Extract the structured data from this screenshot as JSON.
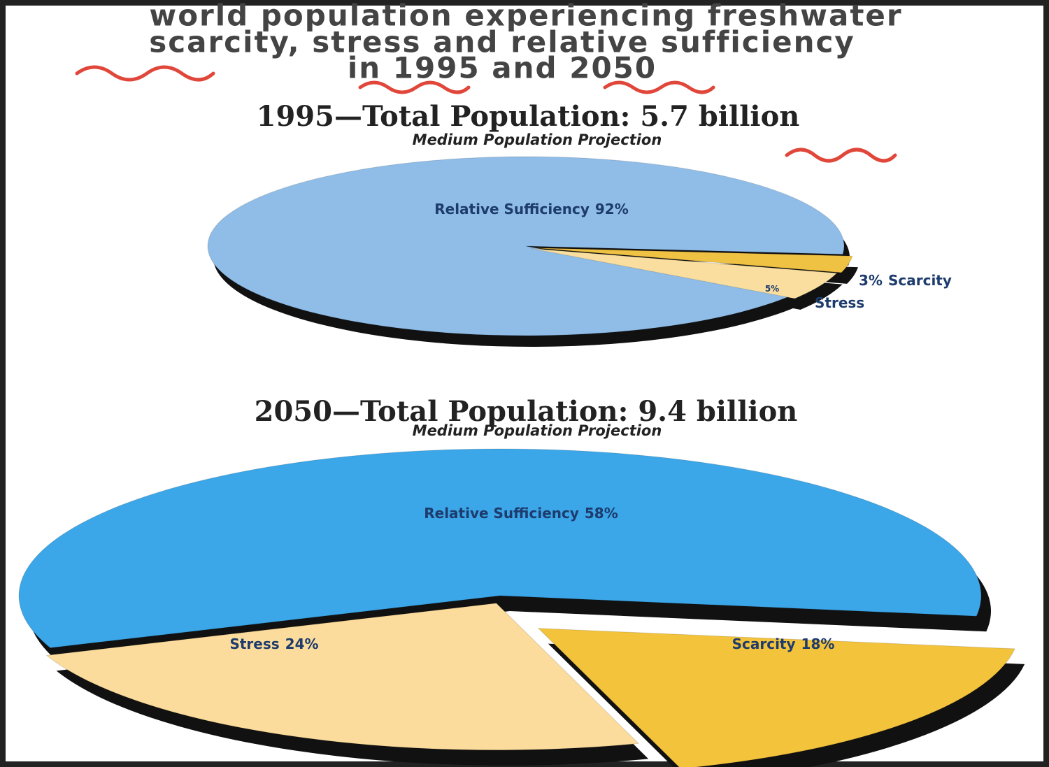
{
  "title_lines": [
    "world population experiencing freshwater",
    "scarcity, stress and relative sufficiency",
    "in 1995 and 2050"
  ],
  "chart_data": [
    {
      "type": "pie",
      "title": "1995—Total Population:  5.7 billion",
      "subtitle": "Medium Population Projection",
      "categories": [
        "Relative Sufficiency",
        "Scarcity",
        "Stress"
      ],
      "values": [
        92,
        3,
        5
      ],
      "value_labels": [
        "92%",
        "3%",
        "5%"
      ],
      "colors": [
        "#8fbde8",
        "#f0c244",
        "#f9dea0"
      ]
    },
    {
      "type": "pie",
      "title": "2050—Total Population:  9.4 billion",
      "subtitle": "Medium Population Projection",
      "categories": [
        "Relative Sufficiency",
        "Stress",
        "Scarcity"
      ],
      "values": [
        58,
        24,
        18
      ],
      "value_labels": [
        "58%",
        "24%",
        "18%"
      ],
      "colors": [
        "#3ba6e8",
        "#fbdc9c",
        "#f3c33c"
      ]
    }
  ]
}
